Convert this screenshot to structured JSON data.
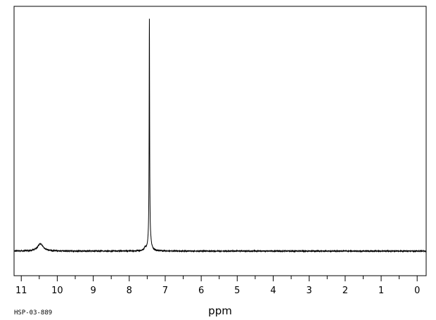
{
  "chart_data": {
    "type": "line",
    "xlabel": "ppm",
    "spectrum_code": "HSP-03-889",
    "x_reversed": true,
    "xlim": [
      11.2,
      -0.25
    ],
    "ylim": [
      -0.1,
      1.0
    ],
    "grid": false,
    "ticks": [
      "11",
      "10",
      "9",
      "8",
      "7",
      "6",
      "5",
      "4",
      "3",
      "2",
      "1",
      "0"
    ],
    "peaks": [
      {
        "ppm": 10.47,
        "height": 0.032,
        "width": 0.09
      },
      {
        "ppm": 7.56,
        "height": 0.012,
        "width": 0.02
      },
      {
        "ppm": 7.44,
        "height": 0.96,
        "width": 0.008
      },
      {
        "ppm": 7.44,
        "height": 0.04,
        "width": 0.05
      },
      {
        "ppm": 7.4,
        "height": 0.008,
        "width": 0.02
      }
    ]
  }
}
